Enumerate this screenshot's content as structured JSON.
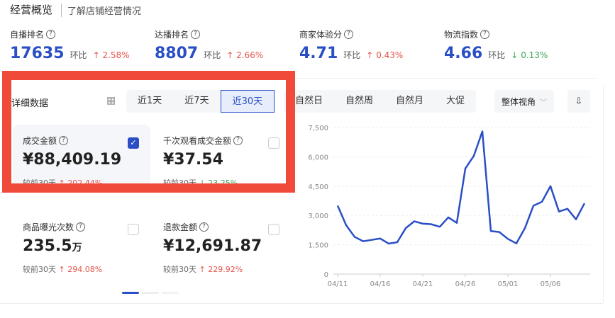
{
  "header": {
    "title": "经营概览",
    "subtitle": "了解店铺经营情况"
  },
  "metrics": [
    {
      "label": "自播排名",
      "value": "17635",
      "compare_label": "环比",
      "change": "2.58%",
      "direction": "up"
    },
    {
      "label": "达播排名",
      "value": "8807",
      "compare_label": "环比",
      "change": "2.66%",
      "direction": "up"
    },
    {
      "label": "商家体验分",
      "value": "4.71",
      "compare_label": "环比",
      "change": "0.43%",
      "direction": "up"
    },
    {
      "label": "物流指数",
      "value": "4.66",
      "compare_label": "环比",
      "change": "0.13%",
      "direction": "down"
    }
  ],
  "detail": {
    "title": "详细数据",
    "range_tabs": [
      "近1天",
      "近7天",
      "近30天"
    ],
    "selected_range": "近30天",
    "period_tabs": [
      "自然日",
      "自然周",
      "自然月",
      "大促"
    ],
    "view_select": "整体视角"
  },
  "cards": [
    {
      "label": "成交金额",
      "value": "¥88,409.19",
      "compare": "较前30天",
      "change": "202.44%",
      "direction": "up",
      "checked": true
    },
    {
      "label": "千次观看成交金额",
      "value": "¥37.54",
      "compare": "较前30天",
      "change": "23.25%",
      "direction": "down",
      "checked": false
    },
    {
      "label": "商品曝光次数",
      "value": "235.5",
      "unit": "万",
      "compare": "较前30天",
      "change": "294.08%",
      "direction": "up",
      "checked": false
    },
    {
      "label": "退款金额",
      "value": "¥12,691.87",
      "compare": "较前30天",
      "change": "229.92%",
      "direction": "up",
      "checked": false
    }
  ],
  "colors": {
    "accent": "#2a4fc5",
    "up": "#e5534b",
    "down": "#3aa757",
    "highlight": "#f04a3a"
  },
  "chart_data": {
    "type": "line",
    "x": [
      "04/11",
      "04/12",
      "04/13",
      "04/14",
      "04/15",
      "04/16",
      "04/17",
      "04/18",
      "04/19",
      "04/20",
      "04/21",
      "04/22",
      "04/23",
      "04/24",
      "04/25",
      "04/26",
      "04/27",
      "04/28",
      "04/29",
      "04/30",
      "05/01",
      "05/02",
      "05/03",
      "05/04",
      "05/05",
      "05/06",
      "05/07",
      "05/08",
      "05/09",
      "05/10"
    ],
    "values": [
      3500,
      2500,
      1900,
      1680,
      1750,
      1820,
      1560,
      1630,
      2350,
      2700,
      2580,
      2550,
      2420,
      2900,
      2620,
      5400,
      6050,
      7300,
      2200,
      2150,
      1800,
      1570,
      2350,
      3500,
      3700,
      4500,
      3200,
      3340,
      2800,
      3620
    ],
    "xticks": [
      "04/11",
      "04/16",
      "04/21",
      "04/26",
      "05/01",
      "05/06"
    ],
    "yticks": [
      "0",
      "1,500",
      "3,000",
      "4,500",
      "6,000",
      "7,500"
    ],
    "ylim": [
      0,
      7500
    ],
    "grid": true
  }
}
